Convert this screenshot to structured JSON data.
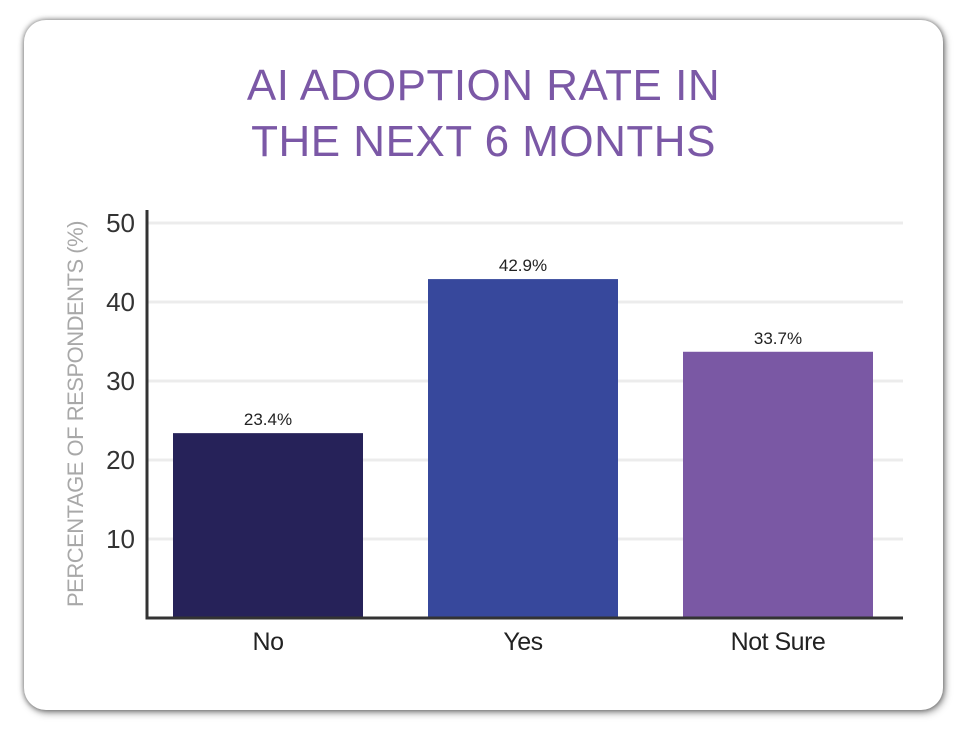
{
  "chart_data": {
    "type": "bar",
    "title_lines": [
      "AI ADOPTION RATE IN",
      "THE NEXT 6 MONTHS"
    ],
    "ylabel": "PERCENTAGE OF RESPONDENTS (%)",
    "xlabel": "",
    "categories": [
      "No",
      "Yes",
      "Not Sure"
    ],
    "values": [
      23.4,
      42.9,
      33.7
    ],
    "value_labels": [
      "23.4%",
      "42.9%",
      "33.7%"
    ],
    "bar_colors": [
      "#262259",
      "#37489c",
      "#7a58a4"
    ],
    "ylim": [
      0,
      52
    ],
    "yticks": [
      10,
      20,
      30,
      40,
      50
    ],
    "grid": true,
    "legend": "none"
  },
  "colors": {
    "title": "#7b58a6",
    "axis": "#333333",
    "grid": "#ececec",
    "tick_label": "#333333",
    "ylabel": "#a8a8a8"
  }
}
